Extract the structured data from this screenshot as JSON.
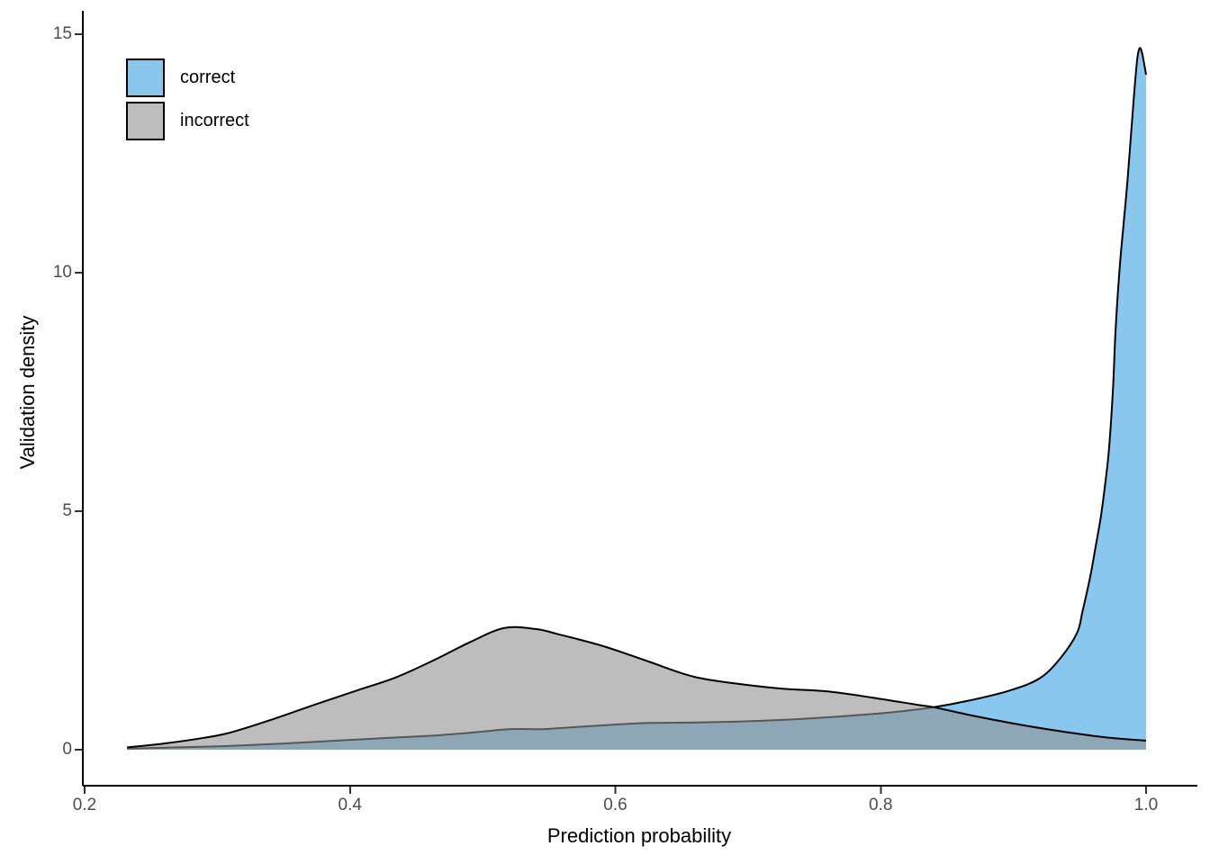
{
  "chart_data": {
    "type": "area",
    "subtype": "overlaid-density",
    "title": "",
    "xlabel": "Prediction probability",
    "ylabel": "Validation density",
    "xlim": [
      0.2,
      1.0
    ],
    "ylim": [
      0,
      15
    ],
    "grid": false,
    "legend_position": "inside-top-left",
    "x_ticks": [
      0.2,
      0.4,
      0.6,
      0.8,
      1.0
    ],
    "x_tick_labels": [
      "0.2",
      "0.4",
      "0.6",
      "0.8",
      "1.0"
    ],
    "y_ticks": [
      0,
      5,
      10,
      15
    ],
    "y_tick_labels": [
      "0",
      "5",
      "10",
      "15"
    ],
    "colors": {
      "axis_line": "#000000",
      "tick_mark": "#333333",
      "tick_label": "#4D4D4D",
      "curve_outline": "#000000"
    },
    "series": [
      {
        "name": "correct",
        "fill": "#89C7EF",
        "fill_opacity": 1,
        "stroke": "#000000",
        "points": [
          [
            0.232,
            0.02
          ],
          [
            0.27,
            0.05
          ],
          [
            0.31,
            0.08
          ],
          [
            0.35,
            0.13
          ],
          [
            0.39,
            0.19
          ],
          [
            0.43,
            0.25
          ],
          [
            0.47,
            0.31
          ],
          [
            0.5,
            0.38
          ],
          [
            0.52,
            0.43
          ],
          [
            0.545,
            0.43
          ],
          [
            0.557,
            0.45
          ],
          [
            0.59,
            0.51
          ],
          [
            0.625,
            0.56
          ],
          [
            0.66,
            0.57
          ],
          [
            0.693,
            0.59
          ],
          [
            0.73,
            0.63
          ],
          [
            0.76,
            0.68
          ],
          [
            0.79,
            0.74
          ],
          [
            0.817,
            0.81
          ],
          [
            0.84,
            0.89
          ],
          [
            0.865,
            1.02
          ],
          [
            0.896,
            1.23
          ],
          [
            0.92,
            1.5
          ],
          [
            0.936,
            1.94
          ],
          [
            0.948,
            2.45
          ],
          [
            0.952,
            2.89
          ],
          [
            0.958,
            3.64
          ],
          [
            0.962,
            4.26
          ],
          [
            0.966,
            4.9
          ],
          [
            0.969,
            5.53
          ],
          [
            0.972,
            6.28
          ],
          [
            0.975,
            7.55
          ],
          [
            0.977,
            8.79
          ],
          [
            0.98,
            10.06
          ],
          [
            0.983,
            11.0
          ],
          [
            0.986,
            11.94
          ],
          [
            0.99,
            13.4
          ],
          [
            0.993,
            14.4
          ],
          [
            0.995,
            14.7
          ],
          [
            0.997,
            14.6
          ],
          [
            1.0,
            14.15
          ]
        ]
      },
      {
        "name": "incorrect",
        "fill": "#919191",
        "fill_opacity": 0.6,
        "stroke": "#000000",
        "points": [
          [
            0.232,
            0.05
          ],
          [
            0.26,
            0.13
          ],
          [
            0.29,
            0.25
          ],
          [
            0.31,
            0.36
          ],
          [
            0.34,
            0.62
          ],
          [
            0.372,
            0.93
          ],
          [
            0.405,
            1.24
          ],
          [
            0.435,
            1.52
          ],
          [
            0.465,
            1.9
          ],
          [
            0.49,
            2.25
          ],
          [
            0.516,
            2.55
          ],
          [
            0.54,
            2.53
          ],
          [
            0.557,
            2.42
          ],
          [
            0.591,
            2.17
          ],
          [
            0.625,
            1.85
          ],
          [
            0.659,
            1.53
          ],
          [
            0.693,
            1.38
          ],
          [
            0.726,
            1.28
          ],
          [
            0.76,
            1.22
          ],
          [
            0.794,
            1.09
          ],
          [
            0.828,
            0.94
          ],
          [
            0.84,
            0.89
          ],
          [
            0.87,
            0.71
          ],
          [
            0.9,
            0.55
          ],
          [
            0.93,
            0.41
          ],
          [
            0.96,
            0.29
          ],
          [
            0.98,
            0.23
          ],
          [
            1.0,
            0.19
          ]
        ]
      }
    ]
  }
}
